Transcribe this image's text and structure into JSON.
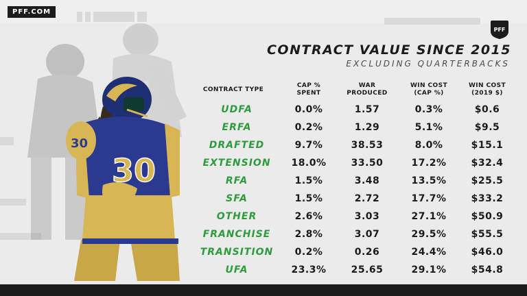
{
  "brand": "PFF.COM",
  "logo_text": "PFF",
  "title": "CONTRACT VALUE SINCE 2015",
  "subtitle": "EXCLUDING QUARTERBACKS",
  "colors": {
    "accent": "#2e9b3d",
    "text": "#1b1b1b",
    "background": "#ebebeb",
    "dark": "#1c1c1c"
  },
  "headers": [
    [
      "CONTRACT TYPE"
    ],
    [
      "CAP %",
      "SPENT"
    ],
    [
      "WAR",
      "PRODUCED"
    ],
    [
      "WIN COST",
      "(CAP %)"
    ],
    [
      "WIN COST",
      "(2019 $)"
    ]
  ],
  "rows": [
    [
      "UDFA",
      "0.0%",
      "1.57",
      "0.3%",
      "$0.6"
    ],
    [
      "ERFA",
      "0.2%",
      "1.29",
      "5.1%",
      "$9.5"
    ],
    [
      "DRAFTED",
      "9.7%",
      "38.53",
      "8.0%",
      "$15.1"
    ],
    [
      "EXTENSION",
      "18.0%",
      "33.50",
      "17.2%",
      "$32.4"
    ],
    [
      "RFA",
      "1.5%",
      "3.48",
      "13.5%",
      "$25.5"
    ],
    [
      "SFA",
      "1.5%",
      "2.72",
      "17.7%",
      "$33.2"
    ],
    [
      "OTHER",
      "2.6%",
      "3.03",
      "27.1%",
      "$50.9"
    ],
    [
      "FRANCHISE",
      "2.8%",
      "3.07",
      "29.5%",
      "$55.5"
    ],
    [
      "TRANSITION",
      "0.2%",
      "0.26",
      "24.4%",
      "$46.0"
    ],
    [
      "UFA",
      "23.3%",
      "25.65",
      "29.1%",
      "$54.8"
    ]
  ],
  "player_jersey_number": "30"
}
